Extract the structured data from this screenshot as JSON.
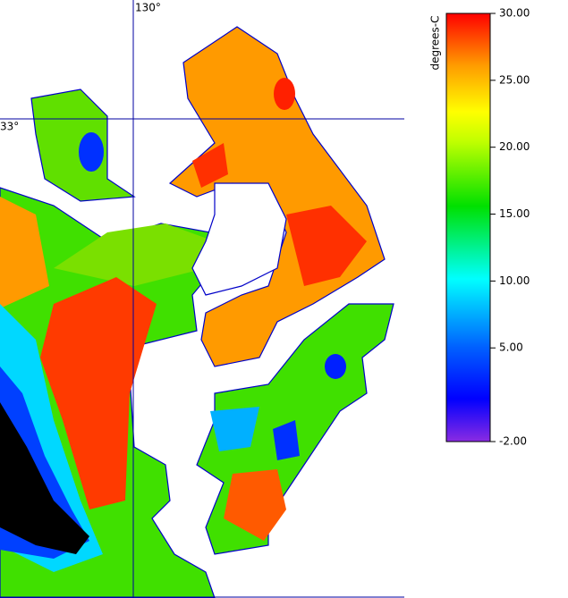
{
  "map": {
    "lon_label": "130°",
    "lat_label": "33°"
  },
  "colorbar": {
    "title": "degrees-C",
    "range": [
      -2,
      30
    ],
    "ticks": [
      {
        "value": 30,
        "label": "30.00"
      },
      {
        "value": 25,
        "label": "25.00"
      },
      {
        "value": 20,
        "label": "20.00"
      },
      {
        "value": 15,
        "label": "15.00"
      },
      {
        "value": 10,
        "label": "10.00"
      },
      {
        "value": 5,
        "label": "5.00"
      },
      {
        "value": -2,
        "label": "-2.00"
      }
    ]
  }
}
